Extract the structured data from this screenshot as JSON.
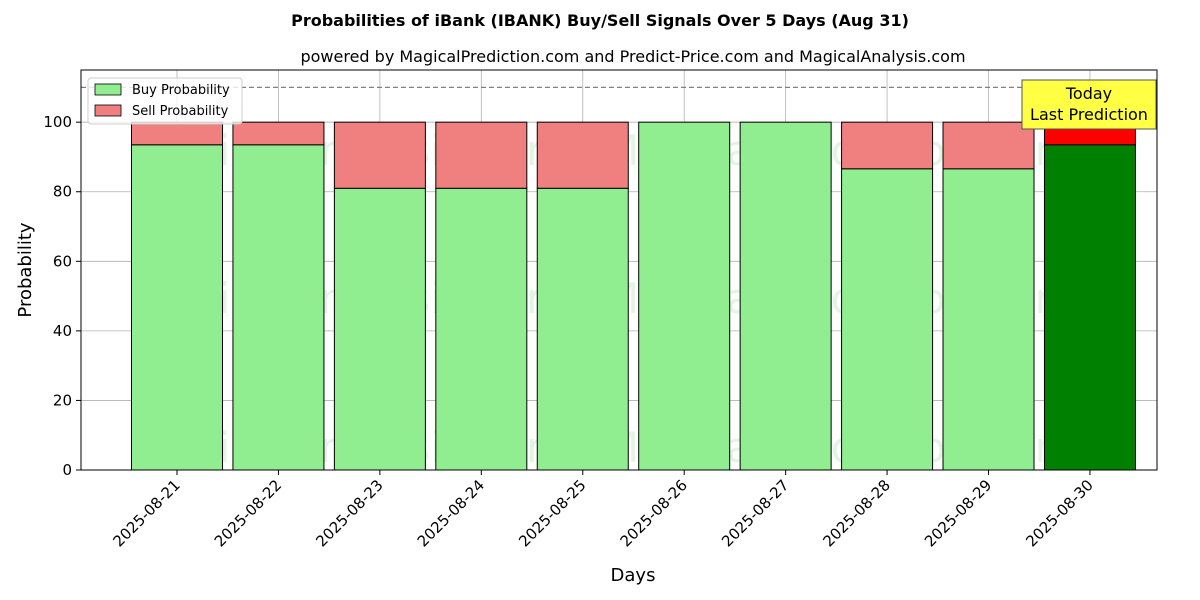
{
  "chart_data": {
    "type": "bar",
    "stacked": true,
    "title": "Probabilities of iBank (IBANK) Buy/Sell Signals Over 5 Days (Aug 31)",
    "subtitle": "powered by MagicalPrediction.com and Predict-Price.com and MagicalAnalysis.com",
    "xlabel": "Days",
    "ylabel": "Probability",
    "ylim": [
      0,
      115
    ],
    "yticks": [
      0,
      20,
      40,
      60,
      80,
      100
    ],
    "reference_line": 110,
    "grid": true,
    "legend_position": "top-left",
    "categories": [
      "2025-08-21",
      "2025-08-22",
      "2025-08-23",
      "2025-08-24",
      "2025-08-25",
      "2025-08-26",
      "2025-08-27",
      "2025-08-28",
      "2025-08-29",
      "2025-08-30"
    ],
    "series": [
      {
        "name": "Buy Probability",
        "values": [
          93.5,
          93.5,
          81,
          81,
          81,
          100,
          100,
          86.6,
          86.6,
          93.5
        ]
      },
      {
        "name": "Sell Probability",
        "values": [
          6.5,
          6.5,
          19,
          19,
          19,
          0,
          0,
          13.4,
          13.4,
          6.5
        ]
      }
    ],
    "annotation": {
      "line1": "Today",
      "line2": "Last Prediction"
    },
    "watermarks": [
      "MagicalAnalysis.com",
      "MagicalPrediction.com",
      "MagicalAnalysis.com",
      "MagicalPrediction.com",
      "MagicalAnalysis.com",
      "MagicalPrediction.com"
    ]
  },
  "colors": {
    "buy": "#90ee90",
    "sell": "#f08080",
    "buy_highlight": "#008000",
    "sell_highlight": "#ff0000",
    "annotation_bg": "#ffff44"
  }
}
